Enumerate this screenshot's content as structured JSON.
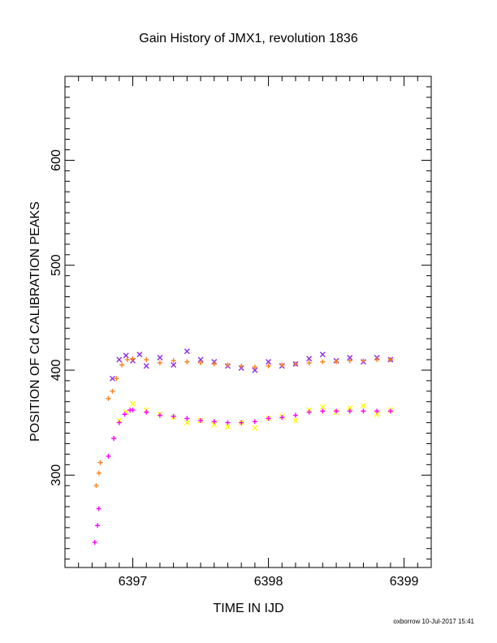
{
  "chart_data": {
    "type": "scatter",
    "title": "Gain History of JMX1, revolution 1836",
    "xlabel": "TIME IN IJD",
    "ylabel": "POSITION OF Cd CALIBRATION PEAKS",
    "xlim": [
      6396.5,
      6399.2
    ],
    "ylim": [
      212,
      680
    ],
    "x_ticks": [
      "6397",
      "6398",
      "6399"
    ],
    "y_ticks": [
      "300",
      "400",
      "500",
      "600"
    ],
    "grid": false,
    "series": [
      {
        "marker": "x",
        "color": "#8a2be2",
        "x": [
          6396.85,
          6396.9,
          6396.95,
          6397.0,
          6397.05,
          6397.1,
          6397.2,
          6397.3,
          6397.4,
          6397.5,
          6397.6,
          6397.7,
          6397.8,
          6397.9,
          6398.0,
          6398.1,
          6398.2,
          6398.3,
          6398.4,
          6398.5,
          6398.6,
          6398.7,
          6398.8,
          6398.9
        ],
        "y": [
          392,
          410,
          414,
          409,
          415,
          404,
          412,
          405,
          418,
          410,
          408,
          404,
          402,
          400,
          408,
          404,
          406,
          411,
          415,
          409,
          412,
          408,
          412,
          410
        ]
      },
      {
        "marker": "+",
        "color": "#ff7f1f",
        "x": [
          6396.73,
          6396.75,
          6396.76,
          6396.82,
          6396.85,
          6396.88,
          6396.92,
          6396.96,
          6397.0,
          6397.1,
          6397.2,
          6397.3,
          6397.4,
          6397.5,
          6397.6,
          6397.7,
          6397.8,
          6397.9,
          6398.0,
          6398.1,
          6398.2,
          6398.3,
          6398.4,
          6398.5,
          6398.6,
          6398.7,
          6398.8,
          6398.9
        ],
        "y": [
          290,
          302,
          312,
          373,
          380,
          392,
          405,
          410,
          411,
          410,
          407,
          409,
          408,
          407,
          406,
          405,
          404,
          403,
          404,
          405,
          406,
          407,
          408,
          408,
          409,
          409,
          410,
          410
        ]
      },
      {
        "marker": "x",
        "color": "#ffff00",
        "x": [
          6396.9,
          6396.95,
          6397.0,
          6397.1,
          6397.2,
          6397.3,
          6397.4,
          6397.5,
          6397.6,
          6397.7,
          6397.8,
          6397.9,
          6398.0,
          6398.1,
          6398.2,
          6398.3,
          6398.4,
          6398.5,
          6398.6,
          6398.7,
          6398.8,
          6398.9
        ],
        "y": [
          352,
          360,
          368,
          362,
          358,
          355,
          350,
          352,
          348,
          346,
          350,
          345,
          354,
          356,
          352,
          362,
          365,
          360,
          364,
          366,
          358,
          362
        ]
      },
      {
        "marker": "+",
        "color": "#ff00ff",
        "x": [
          6396.72,
          6396.74,
          6396.75,
          6396.82,
          6396.86,
          6396.9,
          6396.94,
          6396.98,
          6397.0,
          6397.1,
          6397.2,
          6397.3,
          6397.4,
          6397.5,
          6397.6,
          6397.7,
          6397.8,
          6397.9,
          6398.0,
          6398.1,
          6398.2,
          6398.3,
          6398.4,
          6398.5,
          6398.6,
          6398.7,
          6398.8,
          6398.9
        ],
        "y": [
          236,
          252,
          268,
          318,
          335,
          350,
          358,
          362,
          362,
          360,
          357,
          356,
          354,
          352,
          351,
          350,
          350,
          351,
          354,
          355,
          357,
          360,
          361,
          361,
          361,
          361,
          361,
          361
        ]
      }
    ]
  },
  "footer": {
    "credit": "oxborrow 10-Jul-2017 15:41"
  }
}
